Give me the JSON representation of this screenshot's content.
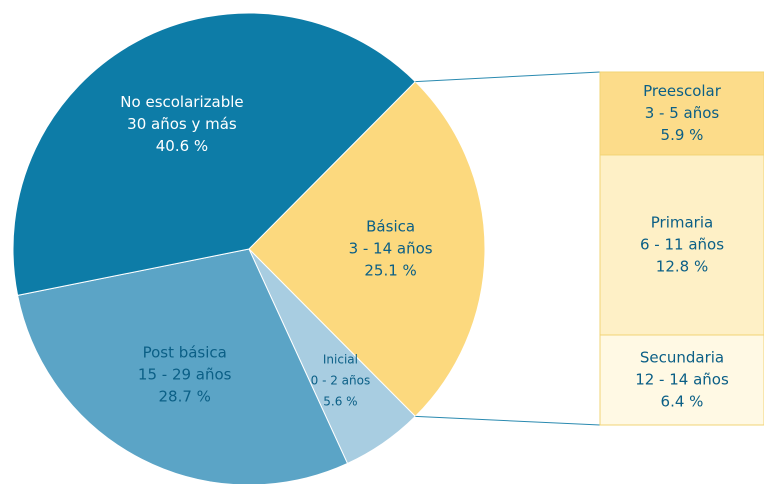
{
  "chart_data": {
    "type": "pie",
    "categories": [
      "Básica",
      "Inicial",
      "Post básica",
      "No escolarizable"
    ],
    "ranges": [
      "3 - 14 años",
      "0 - 2 años",
      "15 - 29 años",
      "30 años y más"
    ],
    "values": [
      25.1,
      5.6,
      28.7,
      40.6
    ],
    "value_labels": [
      "25.1 %",
      "5.6 %",
      "28.7 %",
      "40.6 %"
    ],
    "colors": [
      "#fcd97e",
      "#a8cde1",
      "#5ba4c6",
      "#0d7ca7"
    ],
    "label_colors": [
      "#0b5f86",
      "#0b5f86",
      "#0b5f86",
      "#ffffff"
    ],
    "breakdown": {
      "type": "bar",
      "categories": [
        "Preescolar",
        "Primaria",
        "Secundaria"
      ],
      "ranges": [
        "3 - 5 años",
        "6 - 11 años",
        "12 - 14 años"
      ],
      "values": [
        5.9,
        12.8,
        6.4
      ],
      "value_labels": [
        "5.9 %",
        "12.8 %",
        "6.4 %"
      ],
      "colors": [
        "#fcdc8a",
        "#fef0c6",
        "#fff9e4"
      ],
      "border": "#f2d476",
      "label_color": "#0b5f86"
    }
  }
}
